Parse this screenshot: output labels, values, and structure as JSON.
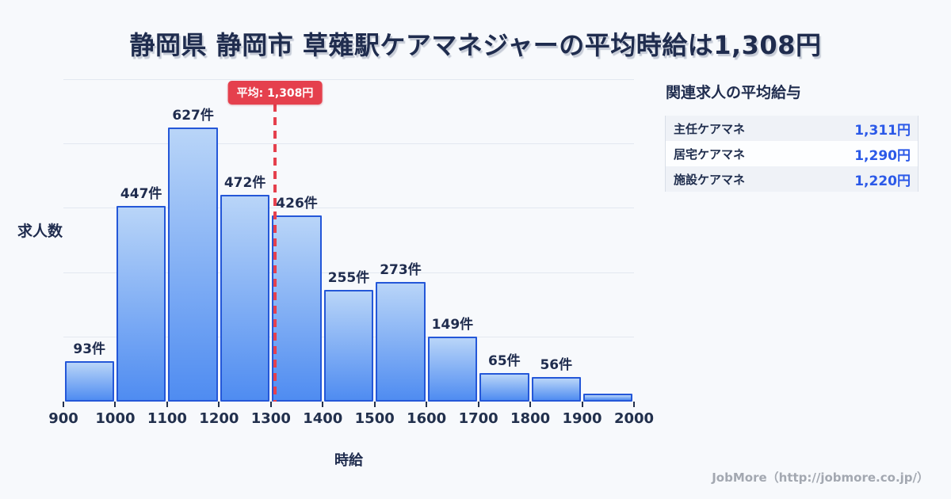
{
  "title": "静岡県 静岡市 草薙駅ケアマネジャーの平均時給は1,308円",
  "chart_data": {
    "type": "bar",
    "xlabel": "時給",
    "ylabel": "求人数",
    "unit": "件",
    "x_ticks": [
      "900",
      "1000",
      "1100",
      "1200",
      "1300",
      "1400",
      "1500",
      "1600",
      "1700",
      "1800",
      "1900",
      "2000"
    ],
    "x_range": [
      900,
      2000
    ],
    "ylim": [
      0,
      735
    ],
    "gridline_count": 5,
    "grid": "horizontal-only",
    "values": [
      93,
      447,
      627,
      472,
      426,
      255,
      273,
      149,
      65,
      56,
      18
    ],
    "bar_labels": [
      "93件",
      "447件",
      "627件",
      "472件",
      "426件",
      "255件",
      "273件",
      "149件",
      "65件",
      "56件",
      ""
    ],
    "average_line": {
      "value": 1308,
      "label": "平均: 1,308円"
    }
  },
  "side_panel": {
    "title": "関連求人の平均給与",
    "rows": [
      {
        "label": "主任ケアマネ",
        "value": "1,311円"
      },
      {
        "label": "居宅ケアマネ",
        "value": "1,290円"
      },
      {
        "label": "施設ケアマネ",
        "value": "1,220円"
      }
    ]
  },
  "footer": {
    "credit": "JobMore（http://jobmore.co.jp/）"
  },
  "colors": {
    "background": "#f7f9fc",
    "title_text": "#1f2c4e",
    "bar_fill_top": "#b9d5f8",
    "bar_fill_bottom": "#4f8cf1",
    "bar_border": "#2457d8",
    "average_red": "#e5404d",
    "value_blue": "#2b59e8",
    "gridline": "#e3e8f0",
    "tick_text": "#22304d",
    "footer_gray": "#a3a8b1"
  }
}
